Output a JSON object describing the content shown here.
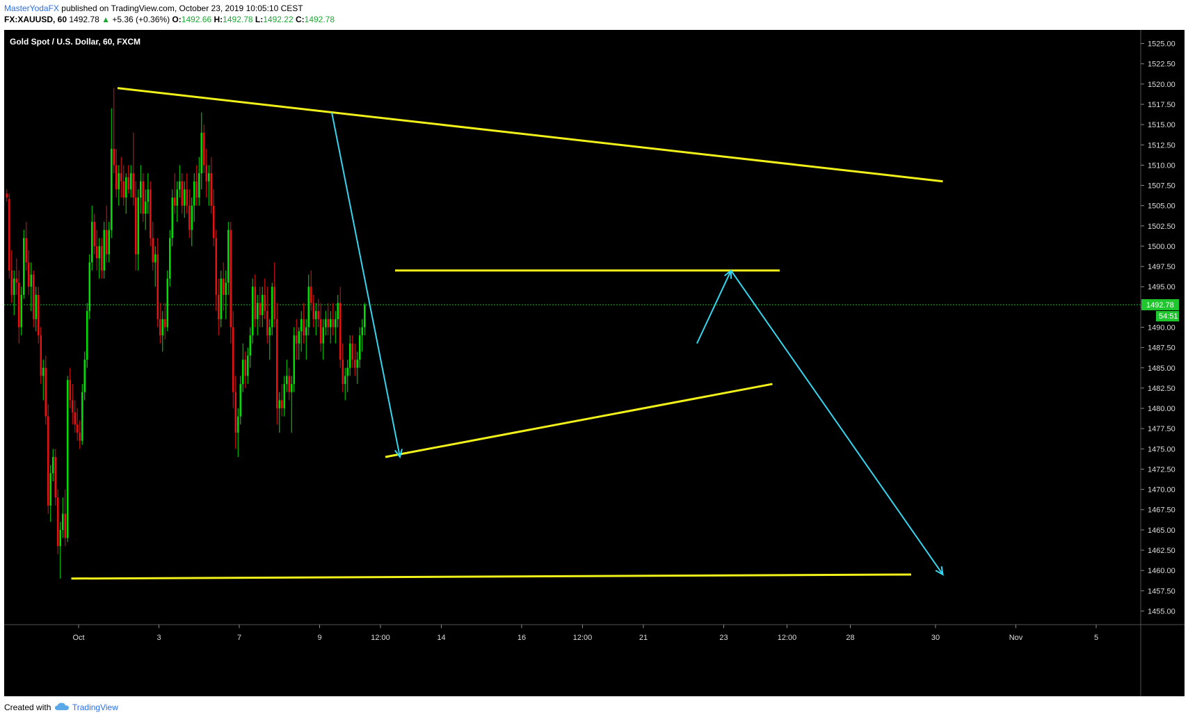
{
  "header": {
    "author": "MasterYodaFX",
    "published_text": "published on TradingView.com, October 23, 2019 10:05:10 CEST",
    "symbol_line_prefix": "FX:XAUUSD, 60",
    "last": "1492.78",
    "change": "+5.36 (+0.36%)",
    "o_label": "O:",
    "o_value": "1492.66",
    "h_label": "H:",
    "h_value": "1492.78",
    "l_label": "L:",
    "l_value": "1492.22",
    "c_label": "C:",
    "c_value": "1492.78"
  },
  "footer": {
    "created_with": "Created with",
    "brand": "TradingView"
  },
  "colors": {
    "background": "#000000",
    "bull": "#00e000",
    "bear": "#e81010",
    "trendline": "#f2f21a",
    "arrow": "#35d6f0",
    "price_label": "#1fc62d",
    "axis_text": "#dddddd",
    "grid_current": "#1fc62d"
  },
  "chart_data": {
    "type": "candlestick",
    "title": "Gold Spot / U.S. Dollar, 60, FXCM",
    "ylim": [
      1453.75,
      1526.25
    ],
    "y_ticks": [
      "1455.00",
      "1457.50",
      "1460.00",
      "1462.50",
      "1465.00",
      "1467.50",
      "1470.00",
      "1472.50",
      "1475.00",
      "1477.50",
      "1480.00",
      "1482.50",
      "1485.00",
      "1487.50",
      "1490.00",
      "1492.50",
      "1495.00",
      "1497.50",
      "1500.00",
      "1502.50",
      "1505.00",
      "1507.50",
      "1510.00",
      "1512.50",
      "1515.00",
      "1517.50",
      "1520.00",
      "1522.50",
      "1525.00"
    ],
    "x_ticks": [
      {
        "label": "Oct",
        "bar": 30
      },
      {
        "label": "3",
        "bar": 63
      },
      {
        "label": "7",
        "bar": 96
      },
      {
        "label": "9",
        "bar": 129
      },
      {
        "label": "12:00",
        "bar": 154
      },
      {
        "label": "14",
        "bar": 179
      },
      {
        "label": "16",
        "bar": 212
      },
      {
        "label": "12:00",
        "bar": 237
      },
      {
        "label": "21",
        "bar": 262
      },
      {
        "label": "23",
        "bar": 295
      },
      {
        "label": "12:00",
        "bar": 321
      },
      {
        "label": "28",
        "bar": 347
      },
      {
        "label": "30",
        "bar": 382
      },
      {
        "label": "Nov",
        "bar": 415
      },
      {
        "label": "5",
        "bar": 448
      }
    ],
    "current_price": "1492.78",
    "countdown": "54:51",
    "candles": [
      [
        1506.5,
        1507.0,
        1505.5,
        1506.0
      ],
      [
        1505.8,
        1506.5,
        1496.0,
        1497.0
      ],
      [
        1497.0,
        1499.5,
        1493.0,
        1494.0
      ],
      [
        1494.0,
        1497.0,
        1491.5,
        1496.0
      ],
      [
        1496.0,
        1498.5,
        1494.0,
        1495.5
      ],
      [
        1495.5,
        1497.0,
        1488.0,
        1490.0
      ],
      [
        1490.0,
        1495.0,
        1489.0,
        1494.0
      ],
      [
        1494.0,
        1502.0,
        1493.5,
        1501.0
      ],
      [
        1501.0,
        1503.0,
        1497.0,
        1498.0
      ],
      [
        1498.0,
        1499.5,
        1494.0,
        1495.0
      ],
      [
        1495.0,
        1498.0,
        1492.0,
        1496.5
      ],
      [
        1496.5,
        1497.0,
        1490.0,
        1491.0
      ],
      [
        1491.0,
        1495.0,
        1489.5,
        1494.0
      ],
      [
        1494.0,
        1495.0,
        1488.0,
        1489.0
      ],
      [
        1489.0,
        1490.0,
        1483.0,
        1484.0
      ],
      [
        1484.0,
        1486.0,
        1481.0,
        1485.0
      ],
      [
        1485.0,
        1486.5,
        1478.0,
        1479.0
      ],
      [
        1479.0,
        1480.5,
        1467.0,
        1468.0
      ],
      [
        1468.0,
        1473.0,
        1466.0,
        1472.0
      ],
      [
        1472.0,
        1475.0,
        1471.0,
        1474.0
      ],
      [
        1474.0,
        1475.0,
        1468.0,
        1469.0
      ],
      [
        1469.0,
        1470.0,
        1462.0,
        1463.0
      ],
      [
        1463.0,
        1466.0,
        1459.0,
        1465.0
      ],
      [
        1465.0,
        1469.0,
        1464.0,
        1467.0
      ],
      [
        1467.0,
        1470.0,
        1463.0,
        1464.0
      ],
      [
        1464.0,
        1484.0,
        1463.5,
        1483.5
      ],
      [
        1483.5,
        1485.0,
        1480.0,
        1481.0
      ],
      [
        1481.0,
        1483.0,
        1478.0,
        1479.5
      ],
      [
        1479.5,
        1481.0,
        1477.0,
        1478.0
      ],
      [
        1478.0,
        1480.0,
        1476.0,
        1477.0
      ],
      [
        1477.0,
        1478.5,
        1475.0,
        1476.0
      ],
      [
        1476.0,
        1483.0,
        1475.5,
        1482.0
      ],
      [
        1482.0,
        1487.0,
        1481.0,
        1486.0
      ],
      [
        1486.0,
        1493.0,
        1485.0,
        1492.0
      ],
      [
        1492.0,
        1499.0,
        1491.0,
        1498.0
      ],
      [
        1498.0,
        1505.0,
        1497.0,
        1503.0
      ],
      [
        1503.0,
        1504.0,
        1499.0,
        1500.0
      ],
      [
        1500.0,
        1502.0,
        1497.0,
        1498.5
      ],
      [
        1498.5,
        1501.0,
        1496.0,
        1500.0
      ],
      [
        1500.0,
        1501.0,
        1496.0,
        1497.0
      ],
      [
        1497.0,
        1503.0,
        1496.0,
        1502.0
      ],
      [
        1502.0,
        1505.0,
        1498.0,
        1499.0
      ],
      [
        1499.0,
        1503.0,
        1498.0,
        1502.0
      ],
      [
        1502.0,
        1517.0,
        1501.0,
        1512.0
      ],
      [
        1512.0,
        1519.5,
        1509.0,
        1510.0
      ],
      [
        1510.0,
        1512.0,
        1506.0,
        1507.0
      ],
      [
        1507.0,
        1510.0,
        1505.0,
        1509.0
      ],
      [
        1509.0,
        1511.0,
        1506.0,
        1508.0
      ],
      [
        1508.0,
        1510.0,
        1505.0,
        1506.0
      ],
      [
        1506.0,
        1509.0,
        1504.0,
        1508.5
      ],
      [
        1508.5,
        1510.0,
        1506.5,
        1507.0
      ],
      [
        1507.0,
        1510.0,
        1506.0,
        1509.0
      ],
      [
        1509.0,
        1514.0,
        1505.0,
        1506.0
      ],
      [
        1506.0,
        1508.0,
        1497.0,
        1499.0
      ],
      [
        1499.0,
        1507.0,
        1497.0,
        1506.0
      ],
      [
        1506.0,
        1510.0,
        1504.0,
        1508.0
      ],
      [
        1508.0,
        1509.0,
        1503.0,
        1504.0
      ],
      [
        1504.0,
        1507.0,
        1502.0,
        1505.5
      ],
      [
        1505.5,
        1509.0,
        1504.0,
        1507.0
      ],
      [
        1507.0,
        1508.0,
        1500.0,
        1501.0
      ],
      [
        1501.0,
        1503.0,
        1497.0,
        1498.0
      ],
      [
        1498.0,
        1500.0,
        1495.0,
        1499.0
      ],
      [
        1499.0,
        1501.0,
        1490.0,
        1491.0
      ],
      [
        1491.0,
        1493.0,
        1488.0,
        1489.0
      ],
      [
        1489.0,
        1492.0,
        1487.0,
        1491.0
      ],
      [
        1491.0,
        1493.0,
        1488.5,
        1490.0
      ],
      [
        1490.0,
        1497.0,
        1489.5,
        1496.0
      ],
      [
        1496.0,
        1502.0,
        1495.0,
        1501.0
      ],
      [
        1501.0,
        1507.0,
        1500.0,
        1506.0
      ],
      [
        1506.0,
        1509.0,
        1504.0,
        1505.0
      ],
      [
        1505.0,
        1508.0,
        1503.0,
        1507.0
      ],
      [
        1507.0,
        1510.0,
        1506.0,
        1508.0
      ],
      [
        1508.0,
        1509.0,
        1504.0,
        1505.0
      ],
      [
        1505.0,
        1508.0,
        1503.5,
        1507.0
      ],
      [
        1507.0,
        1509.0,
        1504.0,
        1505.0
      ],
      [
        1505.0,
        1507.0,
        1501.0,
        1502.0
      ],
      [
        1502.0,
        1506.0,
        1500.0,
        1505.0
      ],
      [
        1505.0,
        1509.0,
        1503.0,
        1508.0
      ],
      [
        1508.0,
        1510.0,
        1505.0,
        1506.0
      ],
      [
        1506.0,
        1511.0,
        1505.0,
        1509.0
      ],
      [
        1509.0,
        1516.5,
        1507.0,
        1514.0
      ],
      [
        1514.0,
        1515.0,
        1509.0,
        1510.0
      ],
      [
        1510.0,
        1512.0,
        1506.0,
        1508.0
      ],
      [
        1508.0,
        1510.0,
        1505.0,
        1509.0
      ],
      [
        1509.0,
        1511.0,
        1504.0,
        1505.0
      ],
      [
        1505.0,
        1507.0,
        1500.0,
        1501.0
      ],
      [
        1501.0,
        1502.0,
        1492.0,
        1494.0
      ],
      [
        1494.0,
        1496.0,
        1489.0,
        1491.0
      ],
      [
        1491.0,
        1497.0,
        1490.0,
        1496.0
      ],
      [
        1496.0,
        1498.0,
        1492.0,
        1494.0
      ],
      [
        1494.0,
        1497.0,
        1491.0,
        1495.5
      ],
      [
        1495.5,
        1503.0,
        1494.0,
        1502.0
      ],
      [
        1502.0,
        1503.0,
        1488.0,
        1490.0
      ],
      [
        1490.0,
        1492.0,
        1480.0,
        1482.0
      ],
      [
        1482.0,
        1484.0,
        1475.0,
        1477.0
      ],
      [
        1477.0,
        1480.0,
        1474.0,
        1479.0
      ],
      [
        1479.0,
        1484.0,
        1478.0,
        1483.0
      ],
      [
        1483.0,
        1488.0,
        1482.0,
        1486.0
      ],
      [
        1486.0,
        1487.0,
        1482.5,
        1484.0
      ],
      [
        1484.0,
        1487.5,
        1483.0,
        1486.5
      ],
      [
        1486.5,
        1490.0,
        1485.0,
        1489.0
      ],
      [
        1489.0,
        1496.0,
        1488.0,
        1495.0
      ],
      [
        1495.0,
        1496.5,
        1490.0,
        1491.0
      ],
      [
        1491.0,
        1494.0,
        1489.0,
        1493.0
      ],
      [
        1493.0,
        1495.0,
        1490.0,
        1491.5
      ],
      [
        1491.5,
        1495.0,
        1490.0,
        1494.0
      ],
      [
        1494.0,
        1496.0,
        1491.0,
        1492.0
      ],
      [
        1492.0,
        1495.0,
        1488.0,
        1489.0
      ],
      [
        1489.0,
        1491.0,
        1486.0,
        1490.0
      ],
      [
        1490.0,
        1495.5,
        1489.0,
        1495.0
      ],
      [
        1495.0,
        1498.0,
        1490.0,
        1491.0
      ],
      [
        1491.0,
        1493.0,
        1478.0,
        1480.0
      ],
      [
        1480.0,
        1482.0,
        1477.0,
        1481.0
      ],
      [
        1481.0,
        1483.0,
        1479.0,
        1480.0
      ],
      [
        1480.0,
        1484.0,
        1479.0,
        1483.0
      ],
      [
        1483.0,
        1486.0,
        1482.0,
        1484.0
      ],
      [
        1484.0,
        1485.0,
        1481.0,
        1482.0
      ],
      [
        1482.0,
        1484.0,
        1477.0,
        1483.0
      ],
      [
        1483.0,
        1490.0,
        1482.0,
        1489.0
      ],
      [
        1489.0,
        1491.0,
        1486.0,
        1488.0
      ],
      [
        1488.0,
        1490.0,
        1486.0,
        1489.5
      ],
      [
        1489.5,
        1492.0,
        1487.0,
        1491.0
      ],
      [
        1491.0,
        1493.0,
        1488.0,
        1489.0
      ],
      [
        1489.0,
        1491.0,
        1486.0,
        1490.0
      ],
      [
        1490.0,
        1496.5,
        1489.0,
        1495.0
      ],
      [
        1495.0,
        1497.0,
        1492.0,
        1493.0
      ],
      [
        1493.0,
        1494.0,
        1490.0,
        1491.0
      ],
      [
        1491.0,
        1493.0,
        1489.0,
        1492.0
      ],
      [
        1492.0,
        1493.5,
        1490.0,
        1491.0
      ],
      [
        1491.0,
        1493.0,
        1487.0,
        1488.0
      ],
      [
        1488.0,
        1491.0,
        1486.0,
        1490.0
      ],
      [
        1490.0,
        1492.0,
        1489.0,
        1491.0
      ],
      [
        1491.0,
        1493.0,
        1489.0,
        1490.0
      ],
      [
        1490.0,
        1492.0,
        1488.0,
        1491.0
      ],
      [
        1491.0,
        1493.0,
        1489.0,
        1490.0
      ],
      [
        1490.0,
        1492.0,
        1488.0,
        1491.0
      ],
      [
        1491.0,
        1494.0,
        1490.0,
        1493.0
      ],
      [
        1493.0,
        1495.0,
        1485.0,
        1486.0
      ],
      [
        1486.0,
        1488.0,
        1482.0,
        1483.0
      ],
      [
        1483.0,
        1485.0,
        1481.0,
        1484.0
      ],
      [
        1484.0,
        1486.0,
        1482.0,
        1485.0
      ],
      [
        1485.0,
        1489.0,
        1484.0,
        1488.0
      ],
      [
        1488.0,
        1489.0,
        1485.0,
        1486.0
      ],
      [
        1486.0,
        1488.0,
        1484.0,
        1485.0
      ],
      [
        1485.0,
        1487.0,
        1483.0,
        1486.0
      ],
      [
        1486.0,
        1490.0,
        1485.0,
        1489.0
      ],
      [
        1489.0,
        1491.0,
        1487.0,
        1490.0
      ],
      [
        1490.0,
        1493.0,
        1489.0,
        1492.78
      ]
    ],
    "trendlines": [
      {
        "name": "upper-descending",
        "from": {
          "bar": 46,
          "price": 1519.5
        },
        "to": {
          "bar": 385,
          "price": 1508.0
        }
      },
      {
        "name": "range-top",
        "from": {
          "bar": 160,
          "price": 1497.0
        },
        "to": {
          "bar": 318,
          "price": 1497.0
        }
      },
      {
        "name": "rising-support",
        "from": {
          "bar": 156,
          "price": 1474.0
        },
        "to": {
          "bar": 315,
          "price": 1483.0
        }
      },
      {
        "name": "bottom-support",
        "from": {
          "bar": 27,
          "price": 1459.0
        },
        "to": {
          "bar": 372,
          "price": 1459.5
        }
      }
    ],
    "arrows": [
      {
        "name": "arrow-down-1",
        "from": {
          "bar": 134,
          "price": 1516.5
        },
        "to": {
          "bar": 162,
          "price": 1474.0
        }
      },
      {
        "name": "arrow-up",
        "from": {
          "bar": 284,
          "price": 1488.0
        },
        "to": {
          "bar": 298,
          "price": 1497.0
        }
      },
      {
        "name": "arrow-projection",
        "from": {
          "bar": 298,
          "price": 1497.0
        },
        "to": {
          "bar": 385,
          "price": 1459.5
        }
      }
    ]
  }
}
